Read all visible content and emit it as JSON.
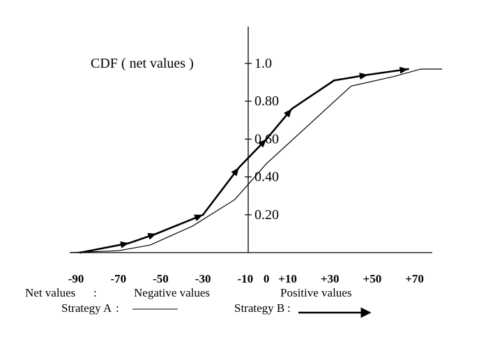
{
  "chart_data": {
    "type": "line",
    "title": "CDF ( net values )",
    "xlabel": "Net values",
    "y_ticks": [
      "0.20",
      "0.40",
      "0,60",
      "0.80",
      "1.0"
    ],
    "y_tick_values": [
      0.2,
      0.4,
      0.6,
      0.8,
      1.0
    ],
    "x_ticks": [
      "-90",
      "-70",
      "-50",
      "-30",
      "-10",
      "0",
      "+10",
      "+30",
      "+50",
      "+70"
    ],
    "x_tick_values": [
      -90,
      -70,
      -50,
      -30,
      -10,
      0,
      10,
      30,
      50,
      70
    ],
    "xlim": [
      -93,
      83
    ],
    "ylim": [
      0,
      1.04
    ],
    "grid": false,
    "group_labels": {
      "negative": "Negative values",
      "positive": "Positive values"
    },
    "series": [
      {
        "name": "Strategy A",
        "style": "thin",
        "x": [
          -93,
          -70,
          -55,
          -35,
          -15,
          0,
          40,
          60,
          73,
          83
        ],
        "y": [
          0.0,
          0.01,
          0.04,
          0.14,
          0.28,
          0.47,
          0.88,
          0.93,
          0.97,
          0.97
        ]
      },
      {
        "name": "Strategy B",
        "style": "thick-arrow",
        "x": [
          -88,
          -65,
          -52,
          -30,
          -13,
          0,
          12,
          32,
          48,
          67
        ],
        "y": [
          0.0,
          0.05,
          0.1,
          0.2,
          0.45,
          0.6,
          0.76,
          0.91,
          0.94,
          0.97
        ],
        "arrow_segment_ends": [
          [
            -65,
            0.05
          ],
          [
            -52,
            0.1
          ],
          [
            -30,
            0.2
          ],
          [
            -13,
            0.45
          ],
          [
            0,
            0.6
          ],
          [
            12,
            0.76
          ],
          [
            48,
            0.94
          ],
          [
            67,
            0.97
          ]
        ]
      }
    ],
    "legend_position": "bottom",
    "legend_separator": ":"
  }
}
